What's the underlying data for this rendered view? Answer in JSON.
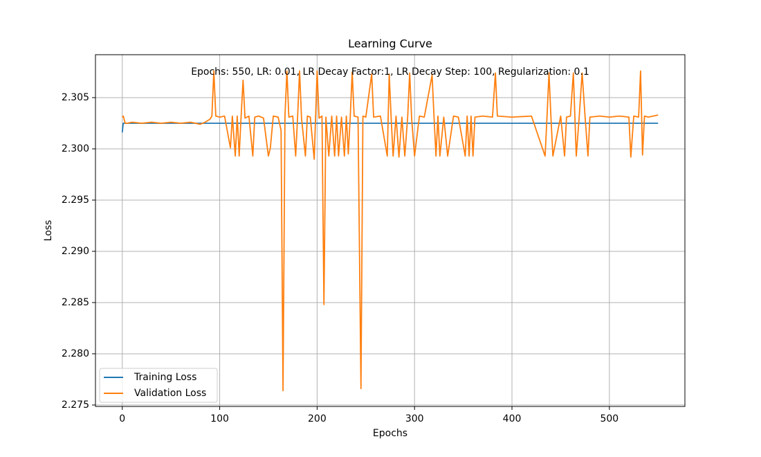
{
  "chart_data": {
    "type": "line",
    "title": "Learning Curve",
    "annotation": "Epochs: 550, LR: 0.01, LR Decay Factor:1, LR Decay Step: 100, Regularization: 0.1",
    "xlabel": "Epochs",
    "ylabel": "Loss",
    "x": [
      0,
      1,
      3,
      5,
      10,
      20,
      30,
      40,
      50,
      60,
      70,
      80,
      85,
      90,
      92,
      94,
      96,
      100,
      105,
      111,
      113,
      116,
      118,
      120,
      122,
      124,
      126,
      130,
      134,
      136,
      140,
      145,
      150,
      152,
      155,
      160,
      163,
      165,
      167,
      169,
      171,
      175,
      178,
      180,
      182,
      184,
      188,
      190,
      193,
      197,
      200,
      202,
      205,
      207,
      209,
      212,
      215,
      218,
      220,
      222,
      225,
      228,
      230,
      232,
      234,
      236,
      238,
      242,
      245,
      247,
      250,
      256,
      258,
      265,
      272,
      274,
      276,
      278,
      281,
      284,
      287,
      290,
      293,
      295,
      297,
      300,
      305,
      310,
      318,
      320,
      322,
      324,
      326,
      330,
      334,
      340,
      345,
      352,
      354,
      356,
      358,
      360,
      362,
      370,
      380,
      383,
      385,
      400,
      420,
      434,
      436,
      438,
      440,
      442,
      450,
      454,
      456,
      460,
      463,
      466,
      469,
      472,
      475,
      478,
      480,
      490,
      500,
      510,
      520,
      522,
      525,
      530,
      532,
      534,
      536,
      540,
      545,
      550
    ],
    "series": [
      {
        "name": "Training Loss",
        "color": "#1f77b4",
        "values": [
          2.3016,
          2.3025,
          2.3025,
          2.3025,
          2.3025,
          2.3025,
          2.3025,
          2.3025,
          2.3025,
          2.3025,
          2.3025,
          2.3025,
          2.3025,
          2.3025,
          2.3025,
          2.3025,
          2.3025,
          2.3025,
          2.3025,
          2.3025,
          2.3025,
          2.3025,
          2.3025,
          2.3025,
          2.3025,
          2.3025,
          2.3025,
          2.3025,
          2.3025,
          2.3025,
          2.3025,
          2.3025,
          2.3025,
          2.3025,
          2.3025,
          2.3025,
          2.3025,
          2.3025,
          2.3025,
          2.3025,
          2.3025,
          2.3025,
          2.3025,
          2.3025,
          2.3025,
          2.3025,
          2.3025,
          2.3025,
          2.3025,
          2.3025,
          2.3025,
          2.3025,
          2.3025,
          2.3025,
          2.3025,
          2.3025,
          2.3025,
          2.3025,
          2.3025,
          2.3025,
          2.3025,
          2.3025,
          2.3025,
          2.3025,
          2.3025,
          2.3025,
          2.3025,
          2.3025,
          2.3025,
          2.3025,
          2.3025,
          2.3025,
          2.3025,
          2.3025,
          2.3025,
          2.3025,
          2.3025,
          2.3025,
          2.3025,
          2.3025,
          2.3025,
          2.3025,
          2.3025,
          2.3025,
          2.3025,
          2.3025,
          2.3025,
          2.3025,
          2.3025,
          2.3025,
          2.3025,
          2.3025,
          2.3025,
          2.3025,
          2.3025,
          2.3025,
          2.3025,
          2.3025,
          2.3025,
          2.3025,
          2.3025,
          2.3025,
          2.3025,
          2.3025,
          2.3025,
          2.3025,
          2.3025,
          2.3025,
          2.3025,
          2.3025,
          2.3025,
          2.3025,
          2.3025,
          2.3025,
          2.3025,
          2.3025,
          2.3025,
          2.3025,
          2.3025,
          2.3025,
          2.3025,
          2.3025,
          2.3025,
          2.3025,
          2.3025,
          2.3025,
          2.3025,
          2.3025,
          2.3025,
          2.3025,
          2.3025,
          2.3025,
          2.3025,
          2.3025,
          2.3025,
          2.3025,
          2.3025,
          2.3025
        ]
      },
      {
        "name": "Validation Loss",
        "color": "#ff7f0e",
        "values": [
          2.3031,
          2.3032,
          2.3025,
          2.3025,
          2.3026,
          2.3025,
          2.3026,
          2.3025,
          2.3026,
          2.3025,
          2.3026,
          2.3024,
          2.3026,
          2.3029,
          2.3032,
          2.3076,
          2.3032,
          2.3031,
          2.3032,
          2.3001,
          2.3032,
          2.2993,
          2.3032,
          2.2993,
          2.3032,
          2.3067,
          2.303,
          2.3032,
          2.2993,
          2.3031,
          2.3032,
          2.303,
          2.2993,
          2.3001,
          2.3032,
          2.3031,
          2.3018,
          2.2764,
          2.3032,
          2.3076,
          2.3031,
          2.3032,
          2.2993,
          2.3032,
          2.3076,
          2.303,
          2.2993,
          2.3032,
          2.3031,
          2.299,
          2.3076,
          2.303,
          2.3032,
          2.2848,
          2.3031,
          2.2993,
          2.3032,
          2.2993,
          2.3032,
          2.2993,
          2.3031,
          2.2993,
          2.3032,
          2.2995,
          2.3031,
          2.3075,
          2.3032,
          2.3031,
          2.2766,
          2.3032,
          2.3031,
          2.3073,
          2.3031,
          2.3032,
          2.2993,
          2.3073,
          2.303,
          2.2993,
          2.3032,
          2.2992,
          2.3031,
          2.2993,
          2.3032,
          2.3074,
          2.303,
          2.2993,
          2.3032,
          2.3031,
          2.3072,
          2.3031,
          2.2993,
          2.3032,
          2.2993,
          2.3031,
          2.2993,
          2.3032,
          2.3031,
          2.2993,
          2.3032,
          2.2993,
          2.3032,
          2.2993,
          2.3031,
          2.3032,
          2.3031,
          2.3074,
          2.3032,
          2.3031,
          2.3032,
          2.2993,
          2.3032,
          2.3074,
          2.3031,
          2.2993,
          2.3032,
          2.2993,
          2.3031,
          2.3032,
          2.3074,
          2.2993,
          2.3031,
          2.3074,
          2.3032,
          2.2993,
          2.3031,
          2.3032,
          2.3031,
          2.3032,
          2.3031,
          2.2992,
          2.3032,
          2.3031,
          2.3076,
          2.2994,
          2.3032,
          2.3031,
          2.3032,
          2.3033
        ]
      }
    ],
    "xlim": [
      -27.5,
      577.5
    ],
    "xticks": [
      0,
      100,
      200,
      300,
      400,
      500
    ],
    "ylim": [
      2.27486,
      2.30919
    ],
    "yticks": [
      2.275,
      {
        "value": 2.28,
        "label": "2.280"
      },
      2.285,
      {
        "value": 2.29,
        "label": "2.290"
      },
      2.295,
      {
        "value": 2.3,
        "label": "2.300"
      },
      2.305
    ],
    "grid": true,
    "legend": "lower left"
  }
}
